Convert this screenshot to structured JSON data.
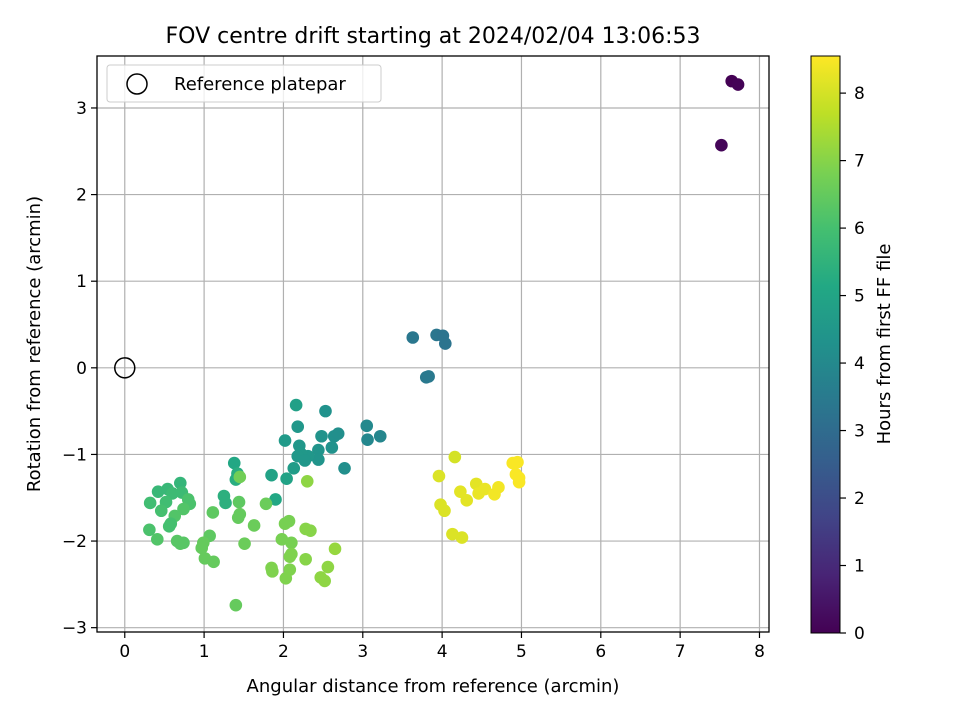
{
  "chart_data": {
    "type": "scatter",
    "title": "FOV centre drift starting at 2024/02/04 13:06:53",
    "xlabel": "Angular distance from reference (arcmin)",
    "ylabel": "Rotation from reference (arcmin)",
    "xlim": [
      -0.35,
      8.12
    ],
    "ylim": [
      -3.05,
      3.6
    ],
    "xticks": [
      0,
      1,
      2,
      3,
      4,
      5,
      6,
      7,
      8
    ],
    "yticks": [
      -3,
      -2,
      -1,
      0,
      1,
      2,
      3
    ],
    "grid": true,
    "legend": {
      "position": "top-left",
      "entries": [
        {
          "label": "Reference platepar",
          "marker": "open-circle",
          "color": "#000000"
        }
      ]
    },
    "reference_point": {
      "x": 0,
      "y": 0,
      "label": "Reference platepar"
    },
    "colorbar": {
      "label": "Hours from first FF file",
      "range": [
        0,
        8.55
      ],
      "ticks": [
        0,
        1,
        2,
        3,
        4,
        5,
        6,
        7,
        8
      ],
      "colormap": "viridis"
    },
    "points": [
      {
        "x": 7.65,
        "y": 3.31,
        "c": 0.0
      },
      {
        "x": 7.73,
        "y": 3.27,
        "c": 0.05
      },
      {
        "x": 7.52,
        "y": 2.57,
        "c": 0.1
      },
      {
        "x": 3.63,
        "y": 0.35,
        "c": 3.4
      },
      {
        "x": 3.93,
        "y": 0.38,
        "c": 3.35
      },
      {
        "x": 4.01,
        "y": 0.37,
        "c": 3.3
      },
      {
        "x": 4.04,
        "y": 0.28,
        "c": 3.3
      },
      {
        "x": 3.8,
        "y": -0.11,
        "c": 3.45
      },
      {
        "x": 3.83,
        "y": -0.1,
        "c": 3.45
      },
      {
        "x": 2.16,
        "y": -0.43,
        "c": 4.85
      },
      {
        "x": 2.53,
        "y": -0.5,
        "c": 4.3
      },
      {
        "x": 3.05,
        "y": -0.67,
        "c": 4.0
      },
      {
        "x": 3.06,
        "y": -0.83,
        "c": 3.95
      },
      {
        "x": 3.22,
        "y": -0.79,
        "c": 3.9
      },
      {
        "x": 2.18,
        "y": -0.68,
        "c": 4.5
      },
      {
        "x": 2.02,
        "y": -0.84,
        "c": 4.6
      },
      {
        "x": 2.2,
        "y": -0.9,
        "c": 4.5
      },
      {
        "x": 2.48,
        "y": -0.79,
        "c": 4.35
      },
      {
        "x": 2.64,
        "y": -0.79,
        "c": 4.25
      },
      {
        "x": 2.69,
        "y": -0.76,
        "c": 4.2
      },
      {
        "x": 2.61,
        "y": -0.92,
        "c": 4.3
      },
      {
        "x": 2.44,
        "y": -0.95,
        "c": 4.4
      },
      {
        "x": 2.44,
        "y": -1.06,
        "c": 4.4
      },
      {
        "x": 2.31,
        "y": -1.02,
        "c": 4.5
      },
      {
        "x": 2.22,
        "y": -0.99,
        "c": 4.55
      },
      {
        "x": 2.18,
        "y": -1.02,
        "c": 4.55
      },
      {
        "x": 2.27,
        "y": -1.07,
        "c": 4.5
      },
      {
        "x": 2.13,
        "y": -1.16,
        "c": 4.7
      },
      {
        "x": 2.04,
        "y": -1.28,
        "c": 4.9
      },
      {
        "x": 2.77,
        "y": -1.16,
        "c": 4.2
      },
      {
        "x": 1.85,
        "y": -1.24,
        "c": 4.9
      },
      {
        "x": 1.38,
        "y": -1.1,
        "c": 5.1
      },
      {
        "x": 1.42,
        "y": -1.22,
        "c": 5.3
      },
      {
        "x": 1.4,
        "y": -1.29,
        "c": 5.3
      },
      {
        "x": 1.45,
        "y": -1.26,
        "c": 6.7
      },
      {
        "x": 1.9,
        "y": -1.52,
        "c": 5.1
      },
      {
        "x": 1.25,
        "y": -1.48,
        "c": 5.4
      },
      {
        "x": 1.27,
        "y": -1.56,
        "c": 5.4
      },
      {
        "x": 0.7,
        "y": -1.33,
        "c": 5.6
      },
      {
        "x": 0.54,
        "y": -1.4,
        "c": 5.7
      },
      {
        "x": 0.42,
        "y": -1.43,
        "c": 5.7
      },
      {
        "x": 0.6,
        "y": -1.45,
        "c": 5.8
      },
      {
        "x": 0.72,
        "y": -1.44,
        "c": 5.8
      },
      {
        "x": 0.32,
        "y": -1.56,
        "c": 5.9
      },
      {
        "x": 0.52,
        "y": -1.55,
        "c": 5.9
      },
      {
        "x": 0.46,
        "y": -1.65,
        "c": 6.0
      },
      {
        "x": 0.8,
        "y": -1.52,
        "c": 6.1
      },
      {
        "x": 0.82,
        "y": -1.57,
        "c": 6.1
      },
      {
        "x": 0.74,
        "y": -1.63,
        "c": 6.2
      },
      {
        "x": 0.63,
        "y": -1.71,
        "c": 6.2
      },
      {
        "x": 0.58,
        "y": -1.8,
        "c": 6.0
      },
      {
        "x": 0.56,
        "y": -1.83,
        "c": 6.0
      },
      {
        "x": 0.31,
        "y": -1.87,
        "c": 6.1
      },
      {
        "x": 0.41,
        "y": -1.98,
        "c": 6.2
      },
      {
        "x": 0.66,
        "y": -2.0,
        "c": 6.3
      },
      {
        "x": 0.7,
        "y": -2.03,
        "c": 6.3
      },
      {
        "x": 0.74,
        "y": -2.02,
        "c": 6.3
      },
      {
        "x": 1.11,
        "y": -1.67,
        "c": 6.4
      },
      {
        "x": 1.07,
        "y": -1.94,
        "c": 6.4
      },
      {
        "x": 0.99,
        "y": -2.02,
        "c": 6.5
      },
      {
        "x": 0.97,
        "y": -2.08,
        "c": 6.5
      },
      {
        "x": 1.01,
        "y": -2.2,
        "c": 6.5
      },
      {
        "x": 1.12,
        "y": -2.24,
        "c": 6.5
      },
      {
        "x": 1.44,
        "y": -1.55,
        "c": 6.4
      },
      {
        "x": 1.45,
        "y": -1.69,
        "c": 6.5
      },
      {
        "x": 1.43,
        "y": -1.73,
        "c": 6.5
      },
      {
        "x": 1.51,
        "y": -2.03,
        "c": 6.6
      },
      {
        "x": 1.63,
        "y": -1.82,
        "c": 6.6
      },
      {
        "x": 1.78,
        "y": -1.57,
        "c": 6.6
      },
      {
        "x": 1.4,
        "y": -2.74,
        "c": 6.5
      },
      {
        "x": 2.02,
        "y": -1.8,
        "c": 6.8
      },
      {
        "x": 2.07,
        "y": -1.77,
        "c": 6.8
      },
      {
        "x": 1.98,
        "y": -1.98,
        "c": 6.8
      },
      {
        "x": 2.1,
        "y": -2.02,
        "c": 6.8
      },
      {
        "x": 2.1,
        "y": -2.15,
        "c": 6.9
      },
      {
        "x": 2.08,
        "y": -2.18,
        "c": 6.9
      },
      {
        "x": 2.08,
        "y": -2.33,
        "c": 6.9
      },
      {
        "x": 1.85,
        "y": -2.31,
        "c": 6.9
      },
      {
        "x": 1.86,
        "y": -2.35,
        "c": 6.9
      },
      {
        "x": 2.03,
        "y": -2.43,
        "c": 6.9
      },
      {
        "x": 2.28,
        "y": -1.86,
        "c": 7.0
      },
      {
        "x": 2.34,
        "y": -1.88,
        "c": 7.0
      },
      {
        "x": 2.3,
        "y": -1.31,
        "c": 7.1
      },
      {
        "x": 2.28,
        "y": -2.21,
        "c": 7.0
      },
      {
        "x": 2.47,
        "y": -2.42,
        "c": 7.1
      },
      {
        "x": 2.52,
        "y": -2.46,
        "c": 7.1
      },
      {
        "x": 2.56,
        "y": -2.3,
        "c": 7.1
      },
      {
        "x": 2.65,
        "y": -2.09,
        "c": 7.2
      },
      {
        "x": 4.16,
        "y": -1.03,
        "c": 8.0
      },
      {
        "x": 3.96,
        "y": -1.25,
        "c": 8.1
      },
      {
        "x": 3.98,
        "y": -1.58,
        "c": 8.1
      },
      {
        "x": 4.03,
        "y": -1.65,
        "c": 8.1
      },
      {
        "x": 4.13,
        "y": -1.92,
        "c": 8.1
      },
      {
        "x": 4.25,
        "y": -1.96,
        "c": 8.1
      },
      {
        "x": 4.23,
        "y": -1.43,
        "c": 8.2
      },
      {
        "x": 4.31,
        "y": -1.53,
        "c": 8.2
      },
      {
        "x": 4.43,
        "y": -1.34,
        "c": 8.2
      },
      {
        "x": 4.46,
        "y": -1.45,
        "c": 8.3
      },
      {
        "x": 4.54,
        "y": -1.4,
        "c": 8.3
      },
      {
        "x": 4.66,
        "y": -1.46,
        "c": 8.4
      },
      {
        "x": 4.71,
        "y": -1.38,
        "c": 8.4
      },
      {
        "x": 4.89,
        "y": -1.1,
        "c": 8.5
      },
      {
        "x": 4.95,
        "y": -1.09,
        "c": 8.5
      },
      {
        "x": 4.93,
        "y": -1.23,
        "c": 8.5
      },
      {
        "x": 4.97,
        "y": -1.27,
        "c": 8.5
      },
      {
        "x": 4.97,
        "y": -1.32,
        "c": 8.5
      }
    ]
  }
}
